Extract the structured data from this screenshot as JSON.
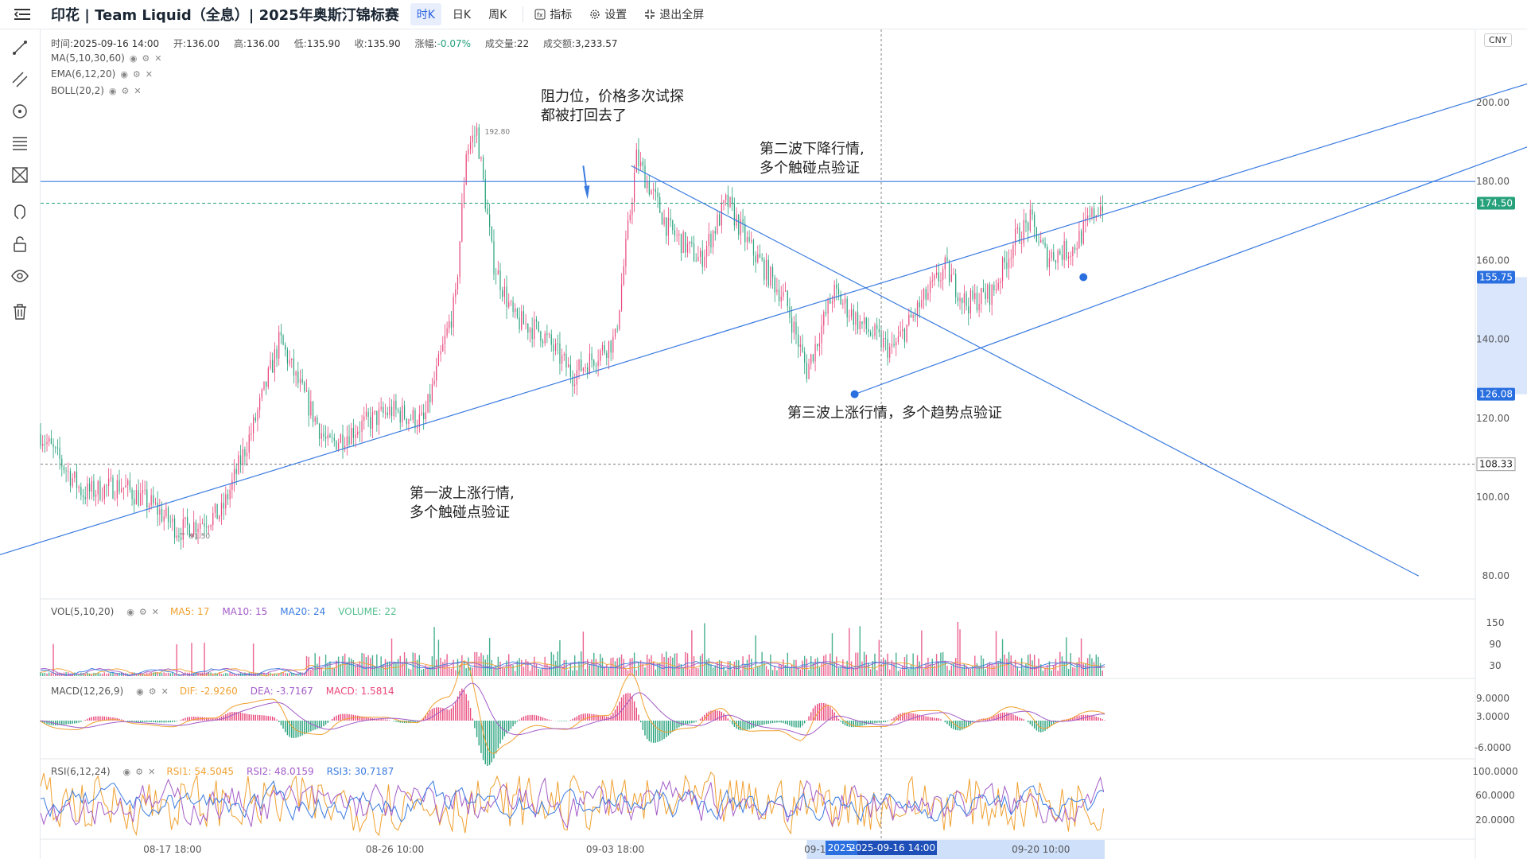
{
  "header": {
    "title": "印花 | Team Liquid（全息）| 2025年奥斯汀锦标赛",
    "tabs": [
      {
        "label": "时K",
        "active": true
      },
      {
        "label": "日K",
        "active": false
      },
      {
        "label": "周K",
        "active": false
      }
    ],
    "actions": [
      {
        "label": "指标",
        "icon": "indicator-icon"
      },
      {
        "label": "设置",
        "icon": "gear-icon"
      },
      {
        "label": "退出全屏",
        "icon": "exit-fullscreen-icon"
      }
    ]
  },
  "ohlc": {
    "time_label": "时间:",
    "time": "2025-09-16 14:00",
    "open_label": "开:",
    "open": "136.00",
    "high_label": "高:",
    "high": "136.00",
    "low_label": "低:",
    "low": "135.90",
    "close_label": "收:",
    "close": "135.90",
    "change_label": "涨幅:",
    "change": "-0.07%",
    "volume_label": "成交量:",
    "volume": "22",
    "amount_label": "成交额:",
    "amount": "3,233.57"
  },
  "overlays": [
    "MA(5,10,30,60)",
    "EMA(6,12,20)",
    "BOLL(20,2)"
  ],
  "currency": "CNY",
  "annotations": {
    "resistance": [
      "阻力位，价格多次试探",
      "都被打回去了"
    ],
    "wave1": [
      "第一波上涨行情,",
      "多个触碰点验证"
    ],
    "wave2": [
      "第二波下降行情,",
      "多个触碰点验证"
    ],
    "wave3": [
      "第三波上涨行情，多个趋势点验证"
    ]
  },
  "price_markers": {
    "max": "192.80",
    "min": "91.50",
    "current": "174.50",
    "line_a": "155.75",
    "line_b": "126.08",
    "crosshair": "108.33"
  },
  "vol_panel": {
    "label": "VOL(5,10,20)",
    "ma5": "MA5: 17",
    "ma10": "MA10: 15",
    "ma20": "MA20: 24",
    "volume": "VOLUME: 22",
    "ticks": [
      "150",
      "90",
      "30"
    ]
  },
  "macd_panel": {
    "label": "MACD(12,26,9)",
    "dif": "DIF: -2.9260",
    "dea": "DEA: -3.7167",
    "macd": "MACD: 1.5814",
    "ticks": [
      "9.0000",
      "3.0000",
      "-6.0000"
    ]
  },
  "rsi_panel": {
    "label": "RSI(6,12,24)",
    "rsi1": "RSI1: 54.5045",
    "rsi2": "RSI2: 48.0159",
    "rsi3": "RSI3: 30.7187",
    "ticks": [
      "100.0000",
      "60.0000",
      "20.0000"
    ]
  },
  "time_axis": {
    "labels": [
      "08-17 18:00",
      "08-26 10:00",
      "09-03 18:00",
      "09-12 02:00",
      "09-20 10:00"
    ],
    "cursor_label": "2025-09-16 14:00",
    "cursor_prefix": "2025-"
  },
  "chart_data": {
    "type": "candlestick",
    "price_axis": {
      "ticks": [
        200,
        180,
        160,
        140,
        120,
        100,
        80
      ],
      "range": [
        73,
        215
      ]
    },
    "horizontal_levels": {
      "resistance": 180,
      "current": 174.5,
      "crosshair": 108.33
    },
    "anchors": [
      {
        "t": 0,
        "p": 116
      },
      {
        "t": 40,
        "p": 101
      },
      {
        "t": 75,
        "p": 103
      },
      {
        "t": 105,
        "p": 98
      },
      {
        "t": 130,
        "p": 91.5
      },
      {
        "t": 170,
        "p": 96
      },
      {
        "t": 200,
        "p": 118
      },
      {
        "t": 225,
        "p": 140
      },
      {
        "t": 240,
        "p": 130
      },
      {
        "t": 270,
        "p": 113
      },
      {
        "t": 300,
        "p": 118
      },
      {
        "t": 330,
        "p": 122
      },
      {
        "t": 360,
        "p": 119
      },
      {
        "t": 390,
        "p": 150
      },
      {
        "t": 400,
        "p": 188
      },
      {
        "t": 410,
        "p": 192.8
      },
      {
        "t": 425,
        "p": 160
      },
      {
        "t": 445,
        "p": 145
      },
      {
        "t": 470,
        "p": 142
      },
      {
        "t": 500,
        "p": 131
      },
      {
        "t": 540,
        "p": 140
      },
      {
        "t": 560,
        "p": 186
      },
      {
        "t": 590,
        "p": 168
      },
      {
        "t": 620,
        "p": 160
      },
      {
        "t": 645,
        "p": 175
      },
      {
        "t": 665,
        "p": 164
      },
      {
        "t": 700,
        "p": 150
      },
      {
        "t": 720,
        "p": 132
      },
      {
        "t": 745,
        "p": 152
      },
      {
        "t": 770,
        "p": 144
      },
      {
        "t": 800,
        "p": 137
      },
      {
        "t": 825,
        "p": 148
      },
      {
        "t": 850,
        "p": 158
      },
      {
        "t": 870,
        "p": 149
      },
      {
        "t": 895,
        "p": 152
      },
      {
        "t": 915,
        "p": 165
      },
      {
        "t": 930,
        "p": 170
      },
      {
        "t": 945,
        "p": 161
      },
      {
        "t": 970,
        "p": 163
      },
      {
        "t": 990,
        "p": 172
      },
      {
        "t": 1000,
        "p": 175
      }
    ],
    "trendlines": [
      {
        "name": "wave1",
        "from": {
          "t": -55,
          "p": 84
        },
        "to": {
          "t": 1460,
          "p": 210
        }
      },
      {
        "name": "wave2",
        "from": {
          "t": 555,
          "p": 184
        },
        "to": {
          "t": 1295,
          "p": 80
        }
      },
      {
        "name": "wave3",
        "from": {
          "t": 765,
          "p": 126.08
        },
        "to": {
          "t": 1460,
          "p": 195
        }
      }
    ]
  }
}
